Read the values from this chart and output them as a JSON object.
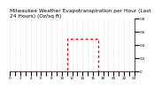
{
  "title": "Milwaukee Weather Evapotranspiration per Hour (Last 24 Hours) (Oz/sq ft)",
  "title_fontsize": 4.2,
  "background_color": "#ffffff",
  "grid_color": "#aaaaaa",
  "bar_color": "#ff0000",
  "ylim": [
    0,
    0.08
  ],
  "xlim": [
    0,
    24
  ],
  "yticks": [
    0,
    0.02,
    0.04,
    0.06,
    0.08
  ],
  "ytick_labels": [
    "0",
    ".02",
    ".04",
    ".06",
    ".08"
  ],
  "xticks": [
    0,
    1,
    2,
    3,
    4,
    5,
    6,
    7,
    8,
    9,
    10,
    11,
    12,
    13,
    14,
    15,
    16,
    17,
    18,
    19,
    20,
    21,
    22,
    23,
    24
  ],
  "hours": [
    0,
    1,
    2,
    3,
    4,
    5,
    6,
    7,
    8,
    9,
    10,
    11,
    12,
    13,
    14,
    15,
    16,
    17,
    18,
    19,
    20,
    21,
    22,
    23
  ],
  "values": [
    0,
    0,
    0,
    0,
    0,
    0,
    0,
    0,
    0,
    0,
    0,
    0.05,
    0.05,
    0.05,
    0.05,
    0.05,
    0.05,
    0,
    0,
    0,
    0,
    0,
    0,
    0
  ],
  "line_color": "#ff0000",
  "spine_color": "#000000",
  "tick_label_fontsize": 3.0
}
